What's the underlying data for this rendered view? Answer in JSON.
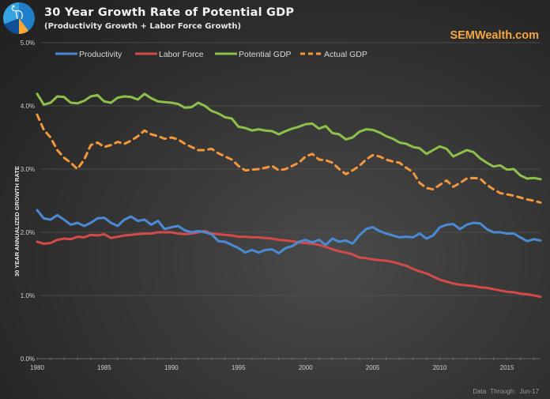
{
  "header": {
    "title": "30 Year Growth Rate of Potential GDP",
    "subtitle": "(Productivity Growth + Labor Force Growth)",
    "brand": "SEMWealth.com",
    "logo_icon": "sem-compass-pie-logo-icon"
  },
  "footer": {
    "note": "Data Through:  Jun-17"
  },
  "colors": {
    "productivity": "#4a8ad4",
    "labor_force": "#d24a4a",
    "potential_gdp": "#8cc04a",
    "actual_gdp": "#f4963a",
    "brand": "#f4a742"
  },
  "chart_data": {
    "type": "line",
    "title": "30 Year Growth Rate of Potential GDP",
    "subtitle": "(Productivity Growth + Labor Force Growth)",
    "xlabel": "",
    "ylabel": "30 YEAR  ANNUALIZED GROWTH RATE",
    "xlim": [
      1980,
      2017.5
    ],
    "ylim": [
      0,
      5
    ],
    "grid": true,
    "legend_position": "top",
    "x_ticks": [
      "1980",
      "1985",
      "1990",
      "1995",
      "2000",
      "2005",
      "2010",
      "2015"
    ],
    "y_ticks": [
      "0.0%",
      "1.0%",
      "2.0%",
      "3.0%",
      "4.0%",
      "5.0%"
    ],
    "x": [
      1980,
      1980.5,
      1981,
      1981.5,
      1982,
      1982.5,
      1983,
      1983.5,
      1984,
      1984.5,
      1985,
      1985.5,
      1986,
      1986.5,
      1987,
      1987.5,
      1988,
      1988.5,
      1989,
      1989.5,
      1990,
      1990.5,
      1991,
      1991.5,
      1992,
      1992.5,
      1993,
      1993.5,
      1994,
      1994.5,
      1995,
      1995.5,
      1996,
      1996.5,
      1997,
      1997.5,
      1998,
      1998.5,
      1999,
      1999.5,
      2000,
      2000.5,
      2001,
      2001.5,
      2002,
      2002.5,
      2003,
      2003.5,
      2004,
      2004.5,
      2005,
      2005.5,
      2006,
      2006.5,
      2007,
      2007.5,
      2008,
      2008.5,
      2009,
      2009.5,
      2010,
      2010.5,
      2011,
      2011.5,
      2012,
      2012.5,
      2013,
      2013.5,
      2014,
      2014.5,
      2015,
      2015.5,
      2016,
      2016.5,
      2017,
      2017.5
    ],
    "series": [
      {
        "name": "Productivity",
        "style": "solid",
        "values": [
          2.35,
          2.22,
          2.2,
          2.27,
          2.2,
          2.12,
          2.15,
          2.1,
          2.15,
          2.22,
          2.23,
          2.15,
          2.1,
          2.2,
          2.25,
          2.18,
          2.2,
          2.12,
          2.18,
          2.05,
          2.08,
          2.1,
          2.03,
          2.0,
          2.02,
          2.0,
          1.97,
          1.86,
          1.85,
          1.8,
          1.75,
          1.68,
          1.72,
          1.68,
          1.72,
          1.73,
          1.67,
          1.75,
          1.78,
          1.85,
          1.88,
          1.84,
          1.88,
          1.8,
          1.9,
          1.85,
          1.87,
          1.82,
          1.95,
          2.05,
          2.08,
          2.02,
          1.98,
          1.95,
          1.92,
          1.93,
          1.92,
          1.98,
          1.9,
          1.95,
          2.08,
          2.12,
          2.13,
          2.05,
          2.12,
          2.15,
          2.14,
          2.05,
          2.0,
          2.0,
          1.98,
          1.98,
          1.92,
          1.86,
          1.89,
          1.87
        ]
      },
      {
        "name": "Labor Force",
        "style": "solid",
        "values": [
          1.85,
          1.82,
          1.83,
          1.88,
          1.9,
          1.89,
          1.93,
          1.92,
          1.96,
          1.95,
          1.97,
          1.91,
          1.93,
          1.95,
          1.96,
          1.97,
          1.98,
          1.98,
          2.0,
          2.0,
          2.0,
          1.98,
          1.97,
          1.98,
          2.0,
          2.02,
          1.98,
          1.97,
          1.96,
          1.95,
          1.93,
          1.93,
          1.92,
          1.92,
          1.91,
          1.9,
          1.88,
          1.87,
          1.86,
          1.84,
          1.83,
          1.82,
          1.8,
          1.77,
          1.73,
          1.7,
          1.68,
          1.65,
          1.6,
          1.59,
          1.57,
          1.56,
          1.55,
          1.53,
          1.5,
          1.47,
          1.42,
          1.38,
          1.35,
          1.3,
          1.25,
          1.22,
          1.19,
          1.17,
          1.16,
          1.15,
          1.13,
          1.12,
          1.1,
          1.08,
          1.06,
          1.05,
          1.03,
          1.02,
          1.0,
          0.98
        ]
      },
      {
        "name": "Potential GDP",
        "style": "solid",
        "values": [
          4.19,
          4.02,
          4.05,
          4.15,
          4.14,
          4.05,
          4.04,
          4.08,
          4.15,
          4.17,
          4.07,
          4.05,
          4.13,
          4.15,
          4.14,
          4.1,
          4.19,
          4.12,
          4.07,
          4.06,
          4.05,
          4.03,
          3.97,
          3.98,
          4.05,
          4.0,
          3.92,
          3.88,
          3.82,
          3.8,
          3.67,
          3.65,
          3.61,
          3.63,
          3.61,
          3.6,
          3.55,
          3.6,
          3.64,
          3.67,
          3.71,
          3.72,
          3.64,
          3.68,
          3.57,
          3.55,
          3.47,
          3.5,
          3.59,
          3.63,
          3.62,
          3.58,
          3.52,
          3.48,
          3.42,
          3.4,
          3.35,
          3.33,
          3.24,
          3.3,
          3.36,
          3.32,
          3.2,
          3.25,
          3.3,
          3.27,
          3.17,
          3.1,
          3.04,
          3.06,
          2.99,
          3.0,
          2.9,
          2.85,
          2.86,
          2.84
        ]
      },
      {
        "name": "Actual GDP",
        "style": "dashed",
        "values": [
          3.86,
          3.62,
          3.5,
          3.3,
          3.18,
          3.1,
          3.0,
          3.15,
          3.38,
          3.42,
          3.35,
          3.38,
          3.43,
          3.4,
          3.45,
          3.52,
          3.61,
          3.55,
          3.52,
          3.48,
          3.5,
          3.47,
          3.4,
          3.35,
          3.3,
          3.3,
          3.32,
          3.25,
          3.2,
          3.15,
          3.05,
          2.98,
          2.99,
          3.0,
          3.02,
          3.05,
          2.98,
          3.0,
          3.05,
          3.1,
          3.2,
          3.24,
          3.15,
          3.14,
          3.1,
          3.0,
          2.92,
          2.98,
          3.05,
          3.15,
          3.22,
          3.2,
          3.15,
          3.12,
          3.1,
          3.02,
          2.95,
          2.78,
          2.7,
          2.68,
          2.75,
          2.82,
          2.72,
          2.78,
          2.85,
          2.86,
          2.85,
          2.75,
          2.68,
          2.62,
          2.6,
          2.58,
          2.55,
          2.52,
          2.5,
          2.47
        ]
      }
    ]
  }
}
